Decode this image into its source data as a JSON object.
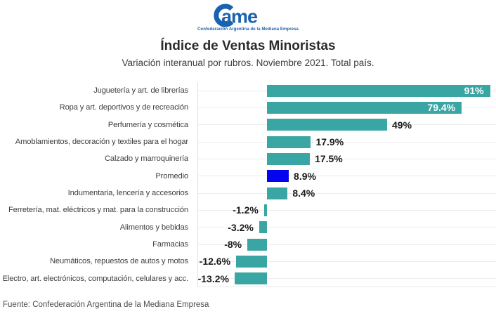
{
  "logo": {
    "wordmark": "Came",
    "subtitle": "Confederación Argentina de la Mediana Empresa",
    "color": "#1a61b0"
  },
  "header": {
    "title": "Índice de Ventas Minoristas",
    "subtitle": "Variación interanual por rubros. Noviembre 2021. Total país."
  },
  "chart_data": {
    "type": "bar",
    "orientation": "horizontal",
    "title": "Índice de Ventas Minoristas",
    "subtitle": "Variación interanual por rubros. Noviembre 2021. Total país.",
    "unit": "%",
    "categories": [
      "Juguetería y art. de librerías",
      "Ropa y art. deportivos y de recreación",
      "Perfumería y cosmética",
      "Amoblamientos, decoración y textiles para el hogar",
      "Calzado y marroquinería",
      "Promedio",
      "Indumentaria, lencería y accesorios",
      "Ferretería, mat. eléctricos y mat. para la construcción",
      "Alimentos y bebidas",
      "Farmacias",
      "Neumáticos, repuestos de autos y motos",
      "Electro, art. electrónicos, computación, celulares y acc."
    ],
    "values": [
      91,
      79.4,
      49,
      17.9,
      17.5,
      8.9,
      8.4,
      -1.2,
      -3.2,
      -8,
      -12.6,
      -13.2
    ],
    "value_labels": [
      "91%",
      "79.4%",
      "49%",
      "17.9%",
      "17.5%",
      "8.9%",
      "8.4%",
      "-1.2%",
      "-3.2%",
      "-8%",
      "-12.6%",
      "-13.2%"
    ],
    "highlight_category": "Promedio",
    "colors": {
      "bar": "#3aa6a3",
      "highlight": "#0404ee",
      "value_label_inside": "#ffffff",
      "value_label_outside": "#1b1b1b",
      "gridline": "#ececec"
    },
    "xlim": [
      -28,
      93
    ],
    "grid": "horizontal gridlines at category centers, left axis spine",
    "legend": "none",
    "value_label_inside_threshold": 60
  },
  "footer": {
    "source": "Fuente: Confederación Argentina de la Mediana Empresa"
  }
}
